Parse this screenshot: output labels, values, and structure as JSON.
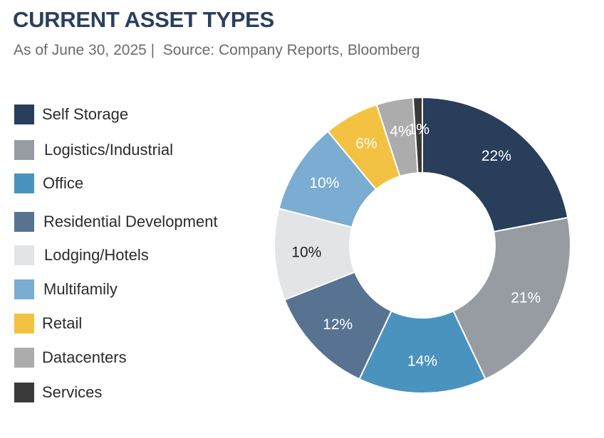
{
  "header": {
    "title": "CURRENT ASSET TYPES",
    "subtitle": "As of June 30, 2025 |  Source: Company Reports, Bloomberg"
  },
  "chart_data": {
    "type": "pie",
    "donut": true,
    "title": "CURRENT ASSET TYPES",
    "subtitle": "As of June 30, 2025 |  Source: Company Reports, Bloomberg",
    "legend_position": "left",
    "categories": [
      "Self Storage",
      "Logistics/Industrial",
      "Office",
      "Residential Development",
      "Lodging/Hotels",
      "Multifamily",
      "Retail",
      "Datacenters",
      "Services"
    ],
    "values": [
      22,
      21,
      14,
      12,
      10,
      10,
      6,
      4,
      1
    ],
    "labels": [
      "22%",
      "21%",
      "14%",
      "12%",
      "10%",
      "10%",
      "6%",
      "4%",
      "1%"
    ],
    "colors": [
      "#283e5a",
      "#979ca3",
      "#4a93bf",
      "#587292",
      "#e3e4e6",
      "#7bacd1",
      "#f4c242",
      "#acacac",
      "#3a3a3a"
    ],
    "label_colors": [
      "#ffffff",
      "#ffffff",
      "#ffffff",
      "#ffffff",
      "#222222",
      "#ffffff",
      "#ffffff",
      "#ffffff",
      "#ffffff"
    ]
  }
}
